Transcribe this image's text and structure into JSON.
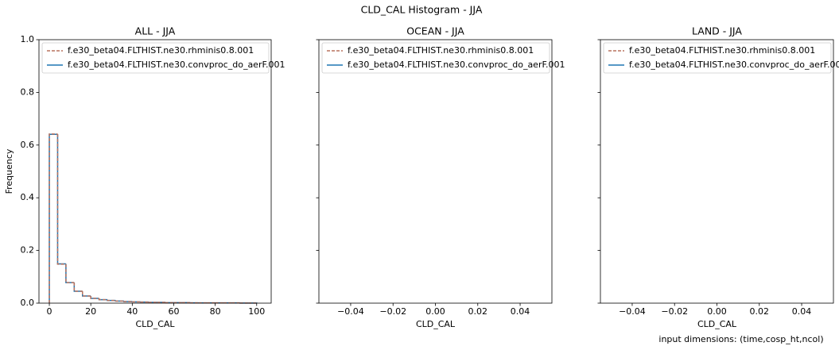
{
  "title": "CLD_CAL Histogram - JJA",
  "footnote": "input dimensions: (time,cosp_ht,ncol)",
  "chart_data": [
    {
      "type": "histogram",
      "title": "ALL - JJA",
      "xlabel": "CLD_CAL",
      "ylabel": "Frequency",
      "xlim": [
        -5,
        107
      ],
      "xticks": [
        0,
        20,
        40,
        60,
        80,
        100
      ],
      "ylim": [
        0,
        1
      ],
      "yticks": [
        {
          "value": 0,
          "label": "0.0"
        },
        0.2,
        0.4,
        0.6,
        0.8,
        {
          "value": 1,
          "label": "1.0"
        }
      ],
      "legend": "upper left",
      "bins": [
        0,
        4,
        8,
        12,
        16,
        20,
        24,
        28,
        32,
        36,
        40,
        44,
        48,
        52,
        56,
        60,
        64,
        68,
        72,
        76,
        80,
        84,
        88,
        92,
        96,
        100
      ],
      "series": [
        {
          "name": "f.e30_beta04.FLTHIST.ne30.rhminis0.8.001",
          "color": "#b8735f",
          "dashed": true,
          "values": [
            0.642,
            0.148,
            0.078,
            0.045,
            0.027,
            0.018,
            0.013,
            0.01,
            0.008,
            0.006,
            0.005,
            0.004,
            0.003,
            0.003,
            0.002,
            0.002,
            0.002,
            0.001,
            0.001,
            0.001,
            0.001,
            0.001,
            0.001,
            0.0005,
            0.0005
          ]
        },
        {
          "name": "f.e30_beta04.FLTHIST.ne30.convproc_do_aerF.001",
          "color": "#1f77b4",
          "dashed": false,
          "values": [
            0.641,
            0.149,
            0.078,
            0.045,
            0.027,
            0.018,
            0.013,
            0.01,
            0.008,
            0.006,
            0.005,
            0.004,
            0.003,
            0.003,
            0.002,
            0.002,
            0.002,
            0.001,
            0.001,
            0.001,
            0.001,
            0.001,
            0.001,
            0.0005,
            0.0005
          ]
        }
      ]
    },
    {
      "type": "histogram",
      "title": "OCEAN - JJA",
      "xlabel": "CLD_CAL",
      "xlim": [
        -0.055,
        0.055
      ],
      "xticks": [
        {
          "value": -0.04,
          "label": "−0.04"
        },
        {
          "value": -0.02,
          "label": "−0.02"
        },
        {
          "value": 0,
          "label": "0.00"
        },
        0.02,
        0.04
      ],
      "ylim": [
        0,
        1
      ],
      "yticks": [
        0,
        0.2,
        0.4,
        0.6,
        0.8,
        1
      ],
      "sharey": true,
      "legend": "upper left",
      "series": [
        {
          "name": "f.e30_beta04.FLTHIST.ne30.rhminis0.8.001",
          "color": "#b8735f",
          "dashed": true
        },
        {
          "name": "f.e30_beta04.FLTHIST.ne30.convproc_do_aerF.001",
          "color": "#1f77b4",
          "dashed": false
        }
      ]
    },
    {
      "type": "histogram",
      "title": "LAND - JJA",
      "xlabel": "CLD_CAL",
      "xlim": [
        -0.055,
        0.055
      ],
      "xticks": [
        {
          "value": -0.04,
          "label": "−0.04"
        },
        {
          "value": -0.02,
          "label": "−0.02"
        },
        {
          "value": 0,
          "label": "0.00"
        },
        0.02,
        0.04
      ],
      "ylim": [
        0,
        1
      ],
      "yticks": [
        0,
        0.2,
        0.4,
        0.6,
        0.8,
        1
      ],
      "sharey": true,
      "legend": "upper left",
      "series": [
        {
          "name": "f.e30_beta04.FLTHIST.ne30.rhminis0.8.001",
          "color": "#b8735f",
          "dashed": true
        },
        {
          "name": "f.e30_beta04.FLTHIST.ne30.convproc_do_aerF.001",
          "color": "#1f77b4",
          "dashed": false
        }
      ]
    }
  ]
}
